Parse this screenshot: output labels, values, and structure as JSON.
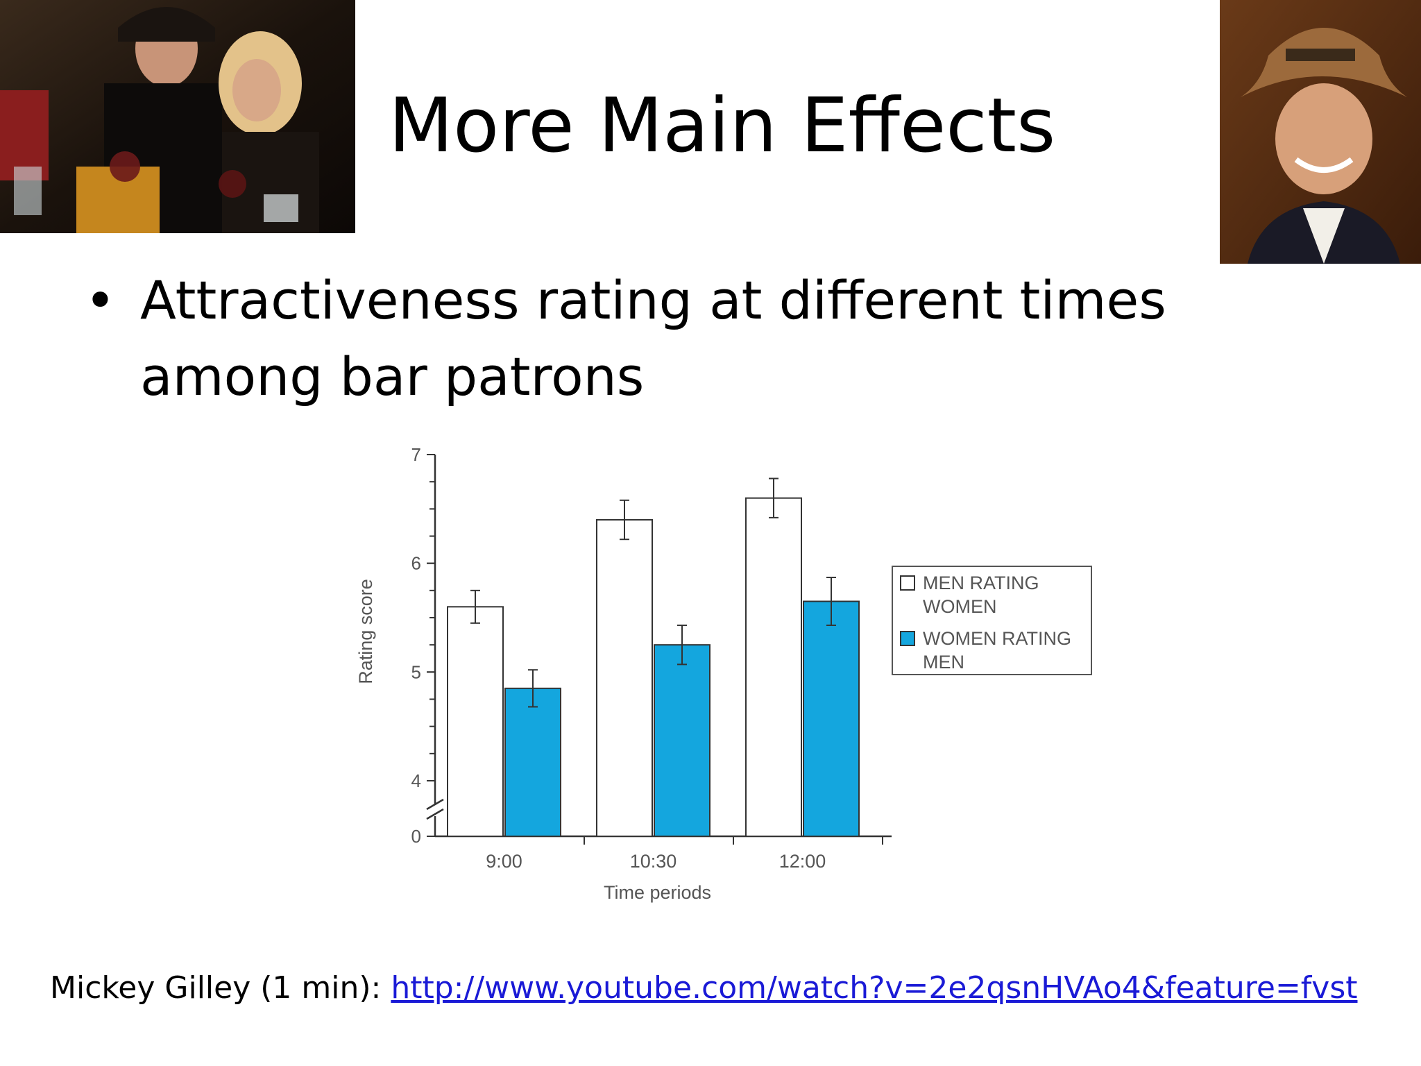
{
  "slide": {
    "title": "More Main Effects",
    "bullet": "Attractiveness rating at different times among bar patrons",
    "footer_prefix": "Mickey Gilley (1 min): ",
    "footer_link": "http://www.youtube.com/watch?v=2e2qsnHVAo4&feature=fvst"
  },
  "chart_data": {
    "type": "bar",
    "categories": [
      "9:00",
      "10:30",
      "12:00"
    ],
    "series": [
      {
        "name": "MEN RATING WOMEN",
        "values": [
          5.6,
          6.4,
          6.6
        ],
        "error": [
          0.15,
          0.18,
          0.18
        ],
        "color": "#ffffff"
      },
      {
        "name": "WOMEN RATING MEN",
        "values": [
          4.85,
          5.25,
          5.65
        ],
        "error": [
          0.17,
          0.18,
          0.22
        ],
        "color": "#14a6de"
      }
    ],
    "legend_lines": [
      [
        "MEN RATING",
        "WOMEN"
      ],
      [
        "WOMEN RATING",
        "MEN"
      ]
    ],
    "xlabel": "Time periods",
    "ylabel": "Rating score",
    "yticks": [
      "0",
      "4",
      "5",
      "6",
      "7"
    ],
    "ylim": [
      3.5,
      7
    ],
    "axis_break": true,
    "legend_position": "right"
  }
}
